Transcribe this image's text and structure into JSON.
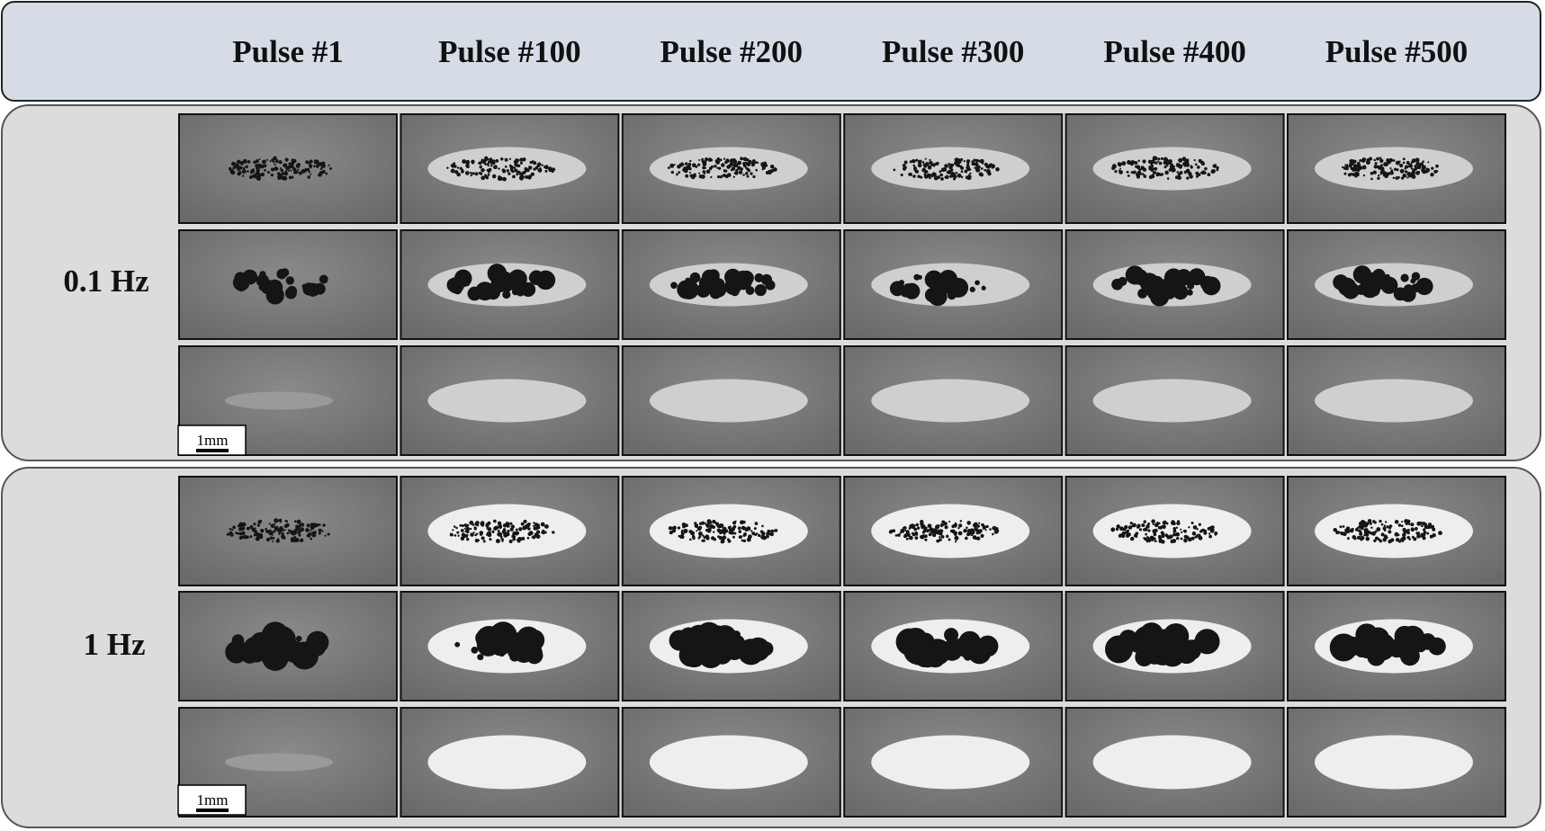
{
  "header": {
    "columns": [
      "Pulse #1",
      "Pulse #100",
      "Pulse #200",
      "Pulse #300",
      "Pulse #400",
      "Pulse #500"
    ]
  },
  "groups": [
    {
      "label": "0.1 Hz",
      "scale_bar": "1mm"
    },
    {
      "label": "1 Hz",
      "scale_bar": "1mm"
    }
  ]
}
